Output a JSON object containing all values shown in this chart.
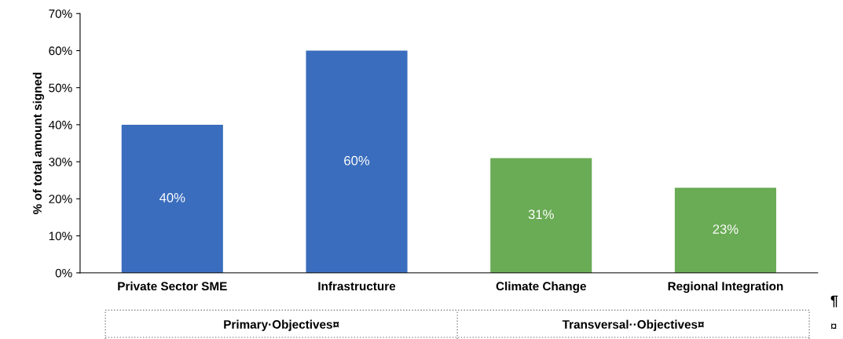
{
  "chart_data": {
    "type": "bar",
    "ylabel": "% of total amount signed",
    "categories": [
      "Private Sector SME",
      "Infrastructure",
      "Climate Change",
      "Regional Integration"
    ],
    "values": [
      40,
      60,
      31,
      23
    ],
    "colors": [
      "#3a6dbd",
      "#3a6dbd",
      "#6aab55",
      "#6aab55"
    ],
    "value_labels": [
      "40%",
      "60%",
      "31%",
      "23%"
    ],
    "ylim": [
      0,
      70
    ],
    "yticks": [
      {
        "value": 0,
        "label": "0%"
      },
      {
        "value": 10,
        "label": "10%"
      },
      {
        "value": 20,
        "label": "20%"
      },
      {
        "value": 30,
        "label": "30%"
      },
      {
        "value": 40,
        "label": "40%"
      },
      {
        "value": 50,
        "label": "50%"
      },
      {
        "value": 60,
        "label": "60%"
      },
      {
        "value": 70,
        "label": "70%"
      }
    ],
    "grid": false,
    "legend": false,
    "annotations": [
      "Primary·Objectives¤",
      "Transversal··Objectives¤",
      "¶",
      "¤"
    ]
  }
}
